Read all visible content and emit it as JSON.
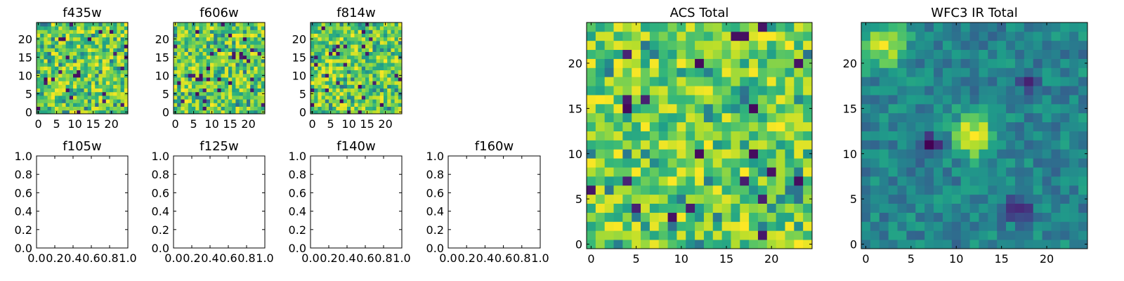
{
  "chart_data": [
    {
      "type": "heatmap",
      "title": "f435w",
      "xticks": [
        0,
        5,
        10,
        15,
        20
      ],
      "yticks": [
        0,
        5,
        10,
        15,
        20
      ],
      "xlim": [
        -0.5,
        24.5
      ],
      "ylim": [
        -0.5,
        24.5
      ],
      "grid_size": 25,
      "seed": 11,
      "colormap": "viridis",
      "pixel_value_range": [
        0.0,
        1.0
      ]
    },
    {
      "type": "heatmap",
      "title": "f606w",
      "xticks": [
        0,
        5,
        10,
        15,
        20
      ],
      "yticks": [
        0,
        5,
        10,
        15,
        20
      ],
      "xlim": [
        -0.5,
        24.5
      ],
      "ylim": [
        -0.5,
        24.5
      ],
      "grid_size": 25,
      "seed": 23,
      "colormap": "viridis",
      "pixel_value_range": [
        0.0,
        1.0
      ]
    },
    {
      "type": "heatmap",
      "title": "f814w",
      "xticks": [
        0,
        5,
        10,
        15,
        20
      ],
      "yticks": [
        0,
        5,
        10,
        15,
        20
      ],
      "xlim": [
        -0.5,
        24.5
      ],
      "ylim": [
        -0.5,
        24.5
      ],
      "grid_size": 25,
      "seed": 37,
      "colormap": "viridis",
      "pixel_value_range": [
        0.0,
        1.0
      ]
    },
    {
      "type": "empty",
      "title": "f105w",
      "xticks": [
        "0.0",
        "0.2",
        "0.4",
        "0.6",
        "0.8",
        "1.0"
      ],
      "yticks": [
        "0.0",
        "0.2",
        "0.4",
        "0.6",
        "0.8",
        "1.0"
      ],
      "xlim": [
        0,
        1
      ],
      "ylim": [
        0,
        1
      ]
    },
    {
      "type": "empty",
      "title": "f125w",
      "xticks": [
        "0.0",
        "0.2",
        "0.4",
        "0.6",
        "0.8",
        "1.0"
      ],
      "yticks": [
        "0.0",
        "0.2",
        "0.4",
        "0.6",
        "0.8",
        "1.0"
      ],
      "xlim": [
        0,
        1
      ],
      "ylim": [
        0,
        1
      ]
    },
    {
      "type": "empty",
      "title": "f140w",
      "xticks": [
        "0.0",
        "0.2",
        "0.4",
        "0.6",
        "0.8",
        "1.0"
      ],
      "yticks": [
        "0.0",
        "0.2",
        "0.4",
        "0.6",
        "0.8",
        "1.0"
      ],
      "xlim": [
        0,
        1
      ],
      "ylim": [
        0,
        1
      ]
    },
    {
      "type": "empty",
      "title": "f160w",
      "xticks": [
        "0.0",
        "0.2",
        "0.4",
        "0.6",
        "0.8",
        "1.0"
      ],
      "yticks": [
        "0.0",
        "0.2",
        "0.4",
        "0.6",
        "0.8",
        "1.0"
      ],
      "xlim": [
        0,
        1
      ],
      "ylim": [
        0,
        1
      ]
    },
    {
      "type": "heatmap",
      "title": "ACS Total",
      "xticks": [
        0,
        5,
        10,
        15,
        20
      ],
      "yticks": [
        0,
        5,
        10,
        15,
        20
      ],
      "xlim": [
        -0.5,
        24.5
      ],
      "ylim": [
        -0.5,
        24.5
      ],
      "grid_size": 25,
      "seed": 53,
      "colormap": "viridis",
      "pixel_value_range": [
        0.0,
        1.0
      ]
    },
    {
      "type": "heatmap",
      "title": "WFC3 IR Total",
      "xticks": [
        0,
        5,
        10,
        15,
        20
      ],
      "yticks": [
        0,
        5,
        10,
        15,
        20
      ],
      "xlim": [
        -0.5,
        24.5
      ],
      "ylim": [
        -0.5,
        24.5
      ],
      "grid_size": 25,
      "seed": 71,
      "colormap": "viridis",
      "pixel_value_range": [
        0.0,
        1.0
      ],
      "blob_center": [
        12,
        12
      ],
      "dark_spots": [
        [
          17,
          4
        ],
        [
          7,
          11
        ],
        [
          18,
          18
        ]
      ]
    }
  ]
}
